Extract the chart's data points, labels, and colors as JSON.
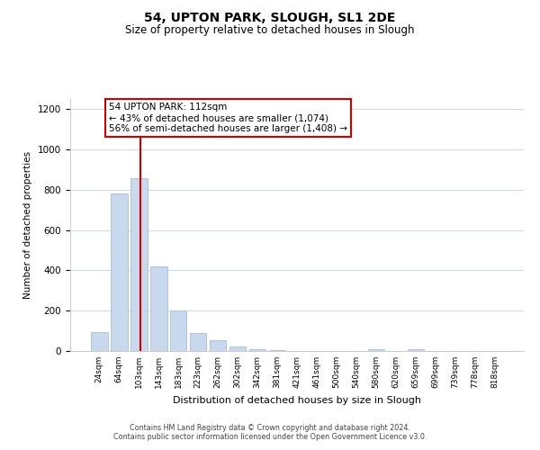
{
  "title": "54, UPTON PARK, SLOUGH, SL1 2DE",
  "subtitle": "Size of property relative to detached houses in Slough",
  "xlabel": "Distribution of detached houses by size in Slough",
  "ylabel": "Number of detached properties",
  "bar_labels": [
    "24sqm",
    "64sqm",
    "103sqm",
    "143sqm",
    "183sqm",
    "223sqm",
    "262sqm",
    "302sqm",
    "342sqm",
    "381sqm",
    "421sqm",
    "461sqm",
    "500sqm",
    "540sqm",
    "580sqm",
    "620sqm",
    "659sqm",
    "699sqm",
    "739sqm",
    "778sqm",
    "818sqm"
  ],
  "bar_values": [
    95,
    780,
    855,
    420,
    200,
    88,
    52,
    22,
    8,
    4,
    2,
    1,
    1,
    0,
    8,
    1,
    8,
    0,
    0,
    0,
    0
  ],
  "bar_color": "#c8d9ee",
  "bar_edge_color": "#a8bfd8",
  "vline_index": 2,
  "vline_color": "#cc0000",
  "annotation_text": "54 UPTON PARK: 112sqm\n← 43% of detached houses are smaller (1,074)\n56% of semi-detached houses are larger (1,408) →",
  "annotation_box_color": "#ffffff",
  "annotation_box_edge": "#cc0000",
  "ylim": [
    0,
    1250
  ],
  "yticks": [
    0,
    200,
    400,
    600,
    800,
    1000,
    1200
  ],
  "footer_text": "Contains HM Land Registry data © Crown copyright and database right 2024.\nContains public sector information licensed under the Open Government Licence v3.0.",
  "background_color": "#ffffff",
  "grid_color": "#ccd9e8"
}
